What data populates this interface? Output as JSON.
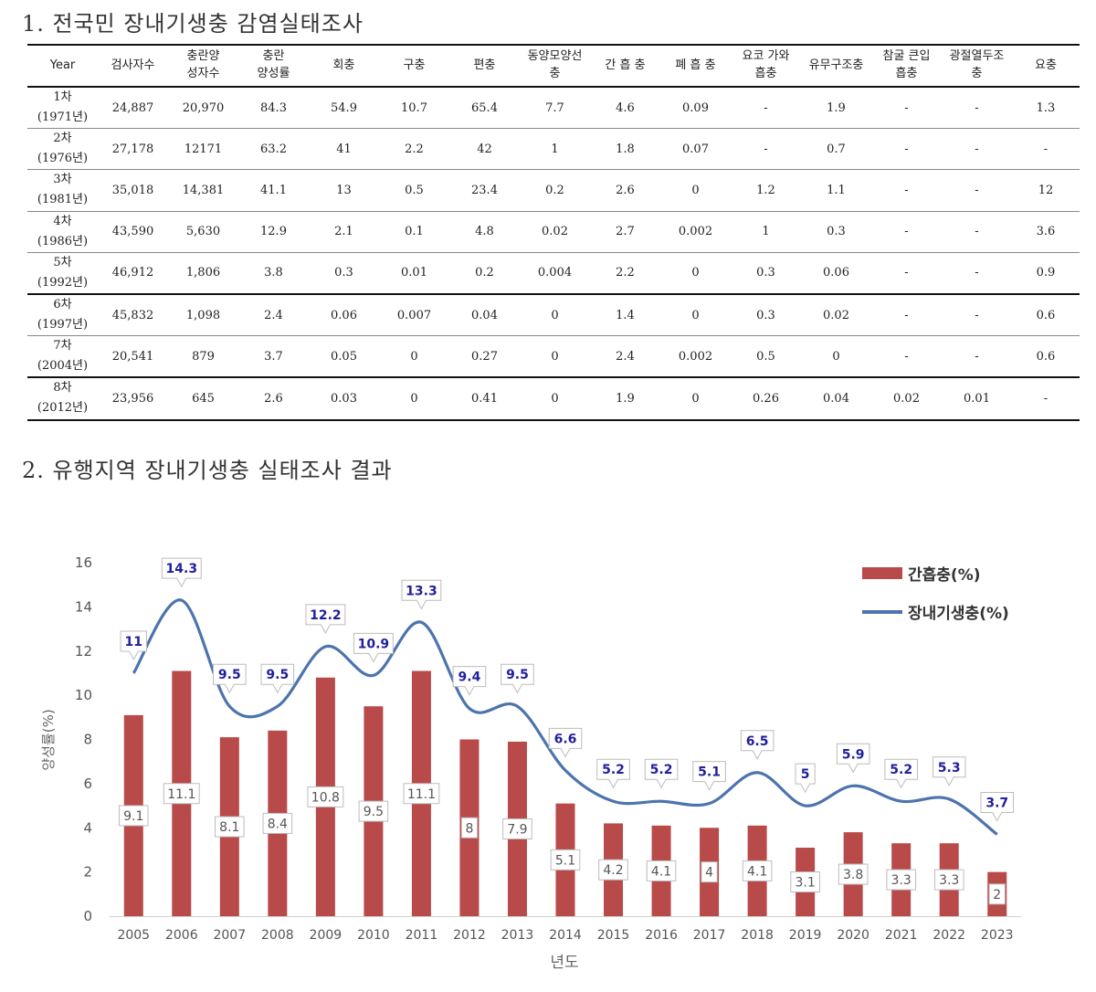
{
  "section1": {
    "title": "1. 전국민 장내기생충 감염실태조사"
  },
  "section2": {
    "title": "2. 유행지역 장내기생충 실태조사 결과"
  },
  "table": {
    "headers": [
      [
        "Year"
      ],
      [
        "검사자수"
      ],
      [
        "충란양",
        "성자수"
      ],
      [
        "충란",
        "양성률"
      ],
      [
        "회충"
      ],
      [
        "구충"
      ],
      [
        "편충"
      ],
      [
        "동양모양선",
        "충"
      ],
      [
        "간 흡 충"
      ],
      [
        "폐 흡 충"
      ],
      [
        "요코 가와",
        "흡충"
      ],
      [
        "유무구조충"
      ],
      [
        "참굴 큰입",
        "흡충"
      ],
      [
        "광절열두조",
        "충"
      ],
      [
        "요충"
      ]
    ],
    "rows": [
      {
        "year": [
          "1차",
          "(1971년)"
        ],
        "cells": [
          "24,887",
          "20,970",
          "84.3",
          "54.9",
          "10.7",
          "65.4",
          "7.7",
          "4.6",
          "0.09",
          "-",
          "1.9",
          "-",
          "-",
          "1.3"
        ],
        "thick": false
      },
      {
        "year": [
          "2차",
          "(1976년)"
        ],
        "cells": [
          "27,178",
          "12171",
          "63.2",
          "41",
          "2.2",
          "42",
          "1",
          "1.8",
          "0.07",
          "-",
          "0.7",
          "-",
          "-",
          "-"
        ],
        "thick": false
      },
      {
        "year": [
          "3차",
          "(1981년)"
        ],
        "cells": [
          "35,018",
          "14,381",
          "41.1",
          "13",
          "0.5",
          "23.4",
          "0.2",
          "2.6",
          "0",
          "1.2",
          "1.1",
          "-",
          "-",
          "12"
        ],
        "thick": false
      },
      {
        "year": [
          "4차",
          "(1986년)"
        ],
        "cells": [
          "43,590",
          "5,630",
          "12.9",
          "2.1",
          "0.1",
          "4.8",
          "0.02",
          "2.7",
          "0.002",
          "1",
          "0.3",
          "-",
          "-",
          "3.6"
        ],
        "thick": false
      },
      {
        "year": [
          "5차",
          "(1992년)"
        ],
        "cells": [
          "46,912",
          "1,806",
          "3.8",
          "0.3",
          "0.01",
          "0.2",
          "0.004",
          "2.2",
          "0",
          "0.3",
          "0.06",
          "-",
          "-",
          "0.9"
        ],
        "thick": true
      },
      {
        "year": [
          "6차",
          "(1997년)"
        ],
        "cells": [
          "45,832",
          "1,098",
          "2.4",
          "0.06",
          "0.007",
          "0.04",
          "0",
          "1.4",
          "0",
          "0.3",
          "0.02",
          "-",
          "-",
          "0.6"
        ],
        "thick": false
      },
      {
        "year": [
          "7차",
          "(2004년)"
        ],
        "cells": [
          "20,541",
          "879",
          "3.7",
          "0.05",
          "0",
          "0.27",
          "0",
          "2.4",
          "0.002",
          "0.5",
          "0",
          "-",
          "-",
          "0.6"
        ],
        "thick": true
      },
      {
        "year": [
          "8차",
          "(2012년)"
        ],
        "cells": [
          "23,956",
          "645",
          "2.6",
          "0.03",
          "0",
          "0.41",
          "0",
          "1.9",
          "0",
          "0.26",
          "0.04",
          "0.02",
          "0.01",
          "-"
        ],
        "thick": true
      }
    ]
  },
  "colors": {
    "bar": "#b84a4a",
    "line": "#4d74ad",
    "label_line": "#1f1f9c",
    "axis_text": "#555555"
  },
  "chart_data": {
    "type": "bar",
    "title": "",
    "xlabel": "년도",
    "ylabel": "양성률(%)",
    "ylim": [
      0,
      16
    ],
    "yticks": [
      0,
      2,
      4,
      6,
      8,
      10,
      12,
      14,
      16
    ],
    "grid": false,
    "legend_position": "top-right",
    "categories": [
      "2005",
      "2006",
      "2007",
      "2008",
      "2009",
      "2010",
      "2011",
      "2012",
      "2013",
      "2014",
      "2015",
      "2016",
      "2017",
      "2018",
      "2019",
      "2020",
      "2021",
      "2022",
      "2023"
    ],
    "series": [
      {
        "name": "간흡충(%)",
        "kind": "bar",
        "values": [
          9.1,
          11.1,
          8.1,
          8.4,
          10.8,
          9.5,
          11.1,
          8,
          7.9,
          5.1,
          4.2,
          4.1,
          4,
          4.1,
          3.1,
          3.8,
          3.3,
          3.3,
          2
        ]
      },
      {
        "name": "장내기생충(%)",
        "kind": "line",
        "smooth": true,
        "values": [
          11,
          14.3,
          9.5,
          9.5,
          12.2,
          10.9,
          13.3,
          9.4,
          9.5,
          6.6,
          5.2,
          5.2,
          5.1,
          6.5,
          5,
          5.9,
          5.2,
          5.3,
          3.7
        ]
      }
    ]
  }
}
